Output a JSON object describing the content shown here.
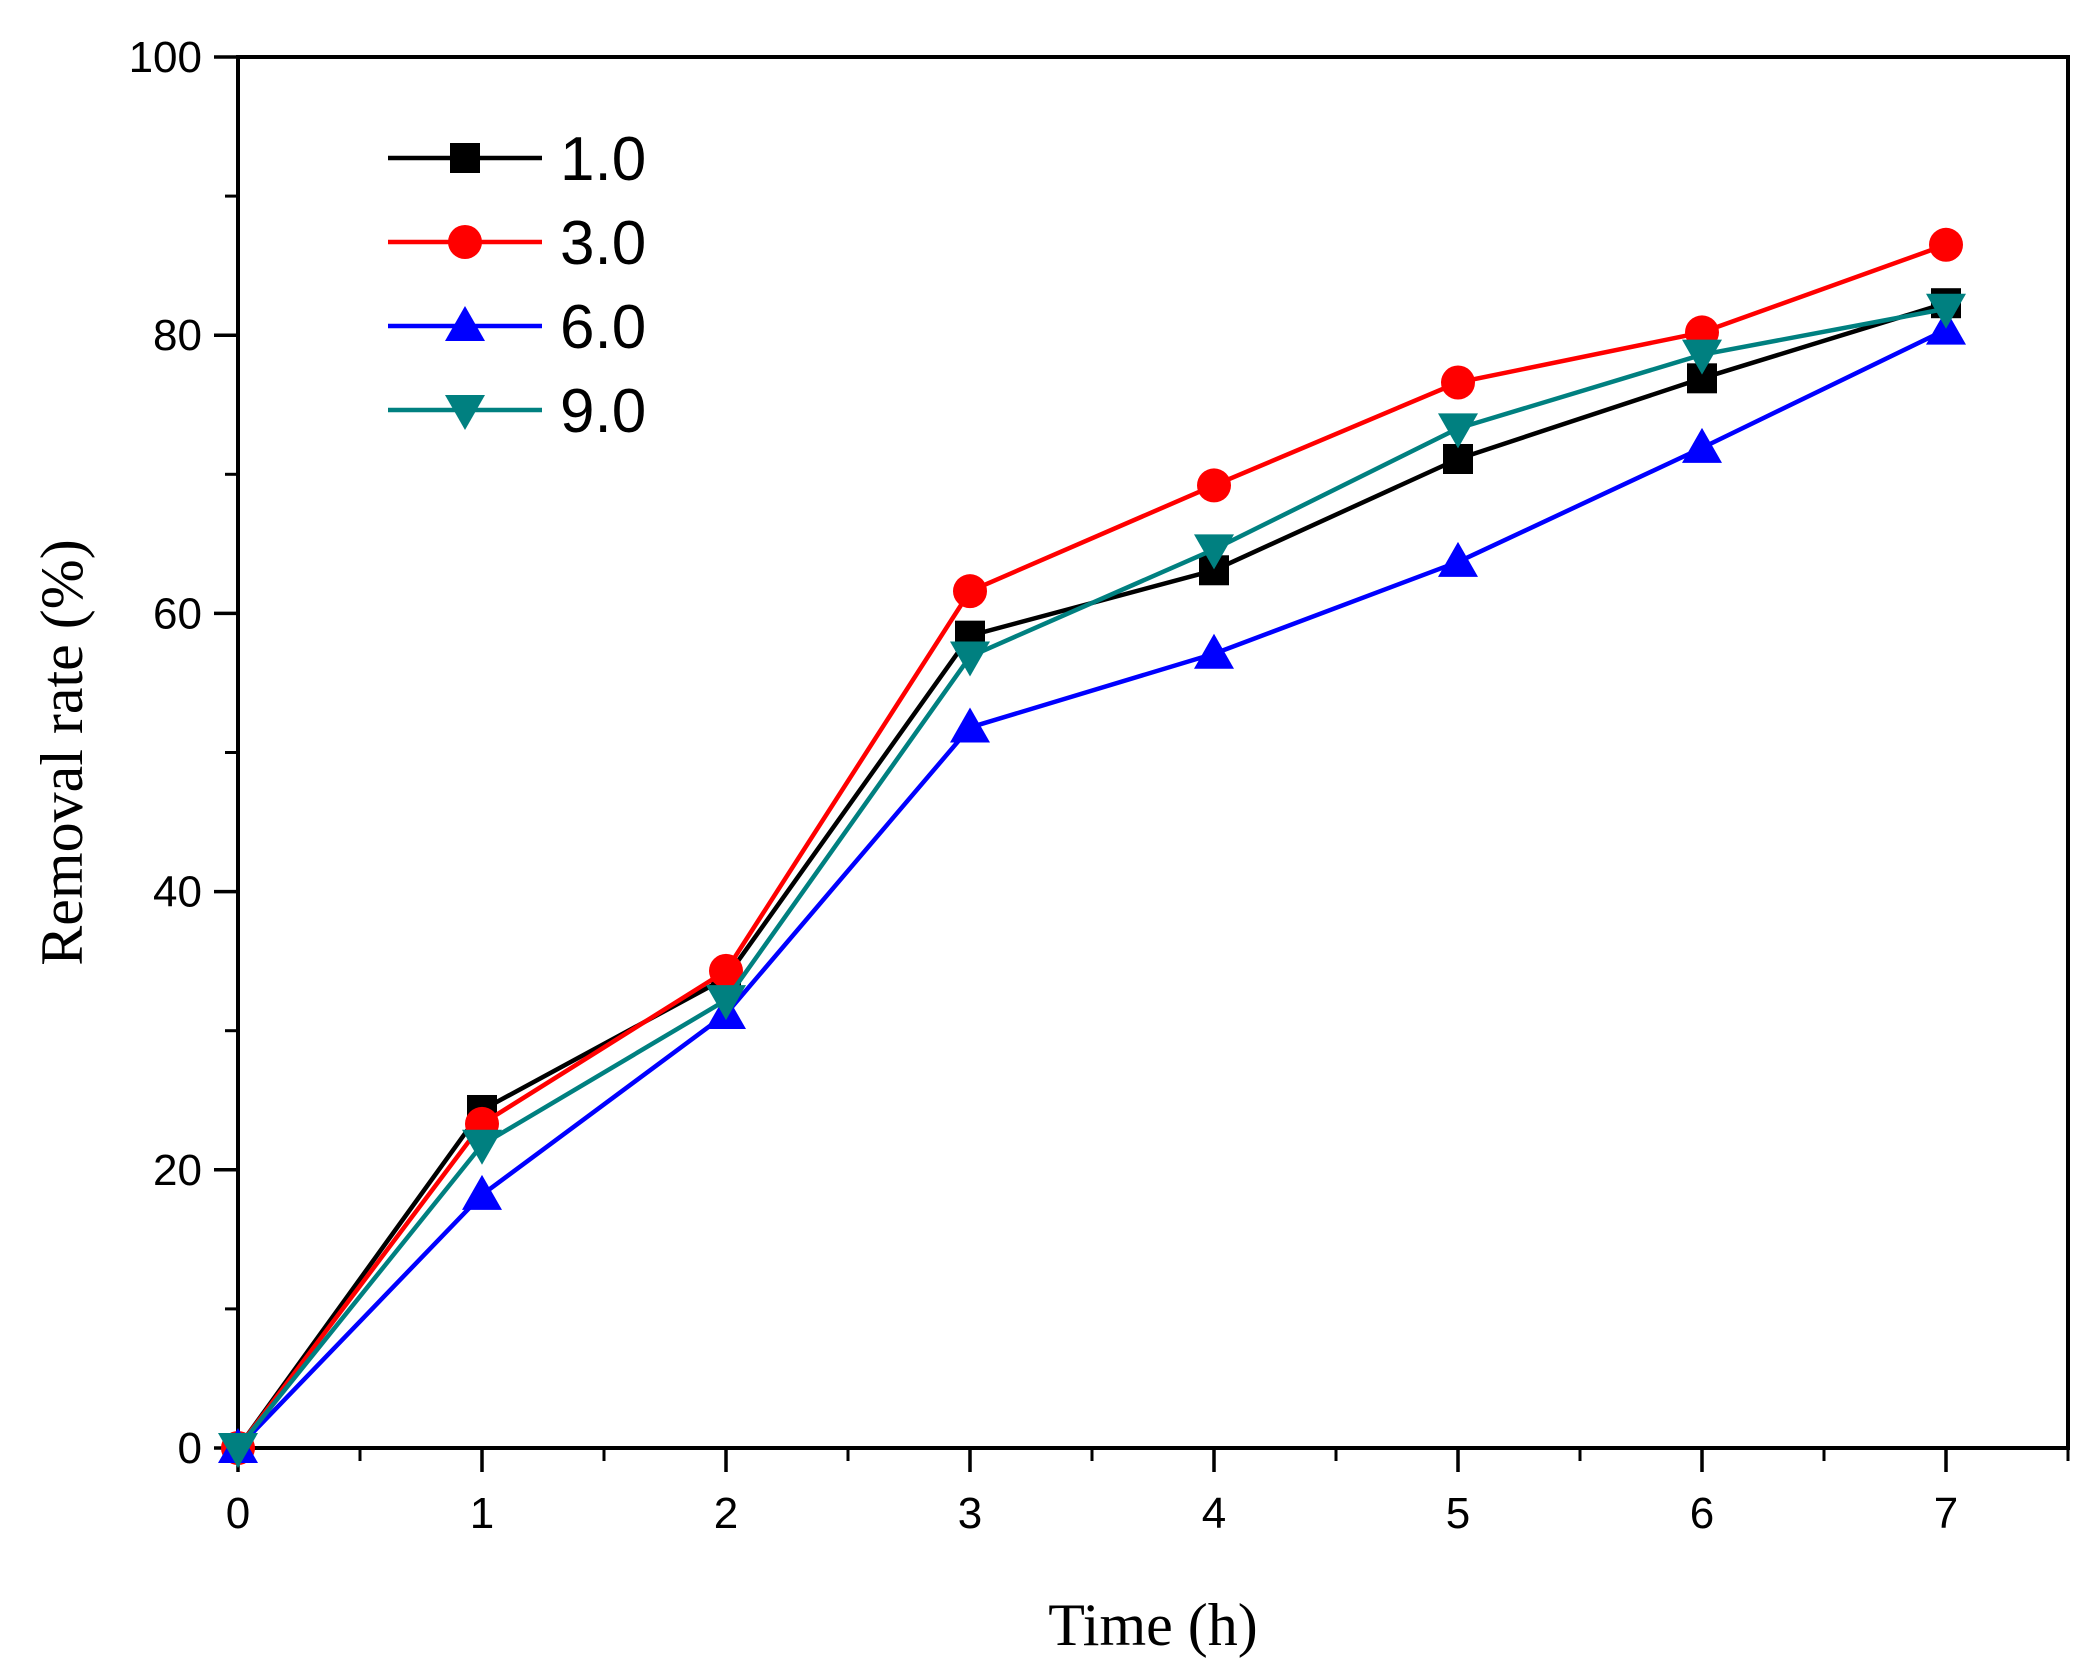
{
  "chart_data": {
    "type": "line",
    "title": "",
    "xlabel": "Time (h)",
    "ylabel": "Removal rate (%)",
    "xlim": [
      0,
      7.5
    ],
    "ylim": [
      0,
      100
    ],
    "x_ticks": [
      0,
      1,
      2,
      3,
      4,
      5,
      6,
      7
    ],
    "y_ticks": [
      0,
      20,
      40,
      60,
      80,
      100
    ],
    "grid": false,
    "legend_position": "top-left",
    "x": [
      0,
      1,
      2,
      3,
      4,
      5,
      6,
      7
    ],
    "series": [
      {
        "name": "1.0",
        "marker": "square",
        "color": "#000000",
        "values": [
          0,
          24.3,
          33.8,
          58.4,
          63.1,
          71.1,
          76.9,
          82.3
        ]
      },
      {
        "name": "3.0",
        "marker": "circle",
        "color": "#ff0000",
        "values": [
          0,
          23.3,
          34.3,
          61.6,
          69.2,
          76.6,
          80.2,
          86.5
        ]
      },
      {
        "name": "6.0",
        "marker": "triangle-up",
        "color": "#0000ff",
        "values": [
          0,
          18.2,
          31.2,
          51.8,
          57.1,
          63.7,
          71.9,
          80.4
        ]
      },
      {
        "name": "9.0",
        "marker": "triangle-down",
        "color": "#008080",
        "values": [
          0,
          21.8,
          32.2,
          56.9,
          64.6,
          73.3,
          78.6,
          81.9
        ]
      }
    ]
  }
}
